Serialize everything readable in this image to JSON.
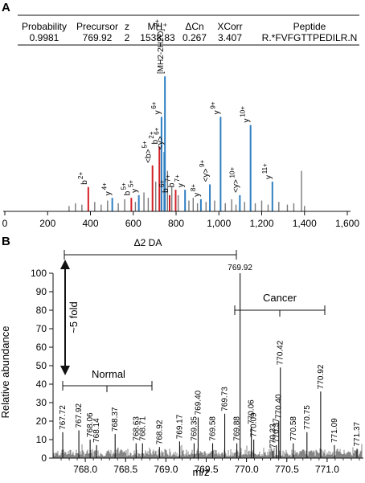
{
  "panel_a": {
    "label": "A",
    "table": {
      "headers": [
        "Probability",
        "Precursor",
        "z",
        "MH⁺",
        "ΔCn",
        "XCorr",
        "Peptide"
      ],
      "row": [
        "0.9981",
        "769.92",
        "2",
        "1538.83",
        "0.267",
        "3.407",
        "R.*FVFGTTPEDILR.N"
      ]
    }
  },
  "panel_b": {
    "label": "B"
  },
  "chart_data": [
    {
      "type": "bar",
      "subtype": "ms2-spectrum",
      "title": "",
      "xlabel": "",
      "ylabel": "",
      "xlim": [
        0,
        1600
      ],
      "x_ticks": [
        "0",
        "200",
        "400",
        "600",
        "800",
        "1,000",
        "1,200",
        "1,400",
        "1,600"
      ],
      "colors": {
        "b_ion": "#d32027",
        "y_ion": "#2f7fc1",
        "other": "#7a7a7a"
      },
      "series": [
        {
          "name": "b ions",
          "peaks": [
            {
              "x": 390,
              "y": 18,
              "label": "b",
              "charge": "2+"
            },
            {
              "x": 591,
              "y": 10,
              "label": "b",
              "charge": "5+"
            },
            {
              "x": 690,
              "y": 34,
              "label": "<b>",
              "charge": "5+"
            },
            {
              "x": 722,
              "y": 48,
              "label": "b",
              "charge": "2+"
            },
            {
              "x": 770,
              "y": 12,
              "label": "b",
              "charge": "6+"
            },
            {
              "x": 798,
              "y": 16,
              "label": "b",
              "charge": "7+"
            }
          ]
        },
        {
          "name": "y ions",
          "peaks": [
            {
              "x": 502,
              "y": 10,
              "label": "y",
              "charge": "4+"
            },
            {
              "x": 626,
              "y": 12,
              "label": "y",
              "charge": "5+"
            },
            {
              "x": 732,
              "y": 70,
              "label": "y",
              "charge": "6+"
            },
            {
              "x": 745,
              "y": 44,
              "label": "<y>",
              "charge": "6+"
            },
            {
              "x": 748,
              "y": 100,
              "label": "[MH2-2H2O]",
              "charge": "2+"
            },
            {
              "x": 842,
              "y": 16,
              "label": "y",
              "charge": "7+"
            },
            {
              "x": 916,
              "y": 9,
              "label": "y",
              "charge": "8+"
            },
            {
              "x": 958,
              "y": 20,
              "label": "<y>",
              "charge": "9+"
            },
            {
              "x": 1008,
              "y": 70,
              "label": "y",
              "charge": "9+"
            },
            {
              "x": 1098,
              "y": 12,
              "label": "<y>",
              "charge": "10+"
            },
            {
              "x": 1148,
              "y": 64,
              "label": "y",
              "charge": "10+"
            },
            {
              "x": 1250,
              "y": 22,
              "label": "y",
              "charge": "11+"
            }
          ]
        },
        {
          "name": "unassigned",
          "peaks": [
            {
              "x": 300,
              "y": 4
            },
            {
              "x": 330,
              "y": 6
            },
            {
              "x": 360,
              "y": 5
            },
            {
              "x": 420,
              "y": 7
            },
            {
              "x": 450,
              "y": 5
            },
            {
              "x": 480,
              "y": 8
            },
            {
              "x": 530,
              "y": 6
            },
            {
              "x": 560,
              "y": 9
            },
            {
              "x": 610,
              "y": 7
            },
            {
              "x": 650,
              "y": 14
            },
            {
              "x": 670,
              "y": 10
            },
            {
              "x": 705,
              "y": 22
            },
            {
              "x": 760,
              "y": 30
            },
            {
              "x": 780,
              "y": 18
            },
            {
              "x": 810,
              "y": 12
            },
            {
              "x": 860,
              "y": 8
            },
            {
              "x": 880,
              "y": 10
            },
            {
              "x": 900,
              "y": 6
            },
            {
              "x": 940,
              "y": 7
            },
            {
              "x": 980,
              "y": 8
            },
            {
              "x": 1030,
              "y": 6
            },
            {
              "x": 1060,
              "y": 9
            },
            {
              "x": 1080,
              "y": 5
            },
            {
              "x": 1120,
              "y": 7
            },
            {
              "x": 1170,
              "y": 6
            },
            {
              "x": 1200,
              "y": 8
            },
            {
              "x": 1230,
              "y": 5
            },
            {
              "x": 1280,
              "y": 7
            },
            {
              "x": 1320,
              "y": 5
            },
            {
              "x": 1350,
              "y": 6
            },
            {
              "x": 1386,
              "y": 30
            },
            {
              "x": 1400,
              "y": 4
            }
          ]
        }
      ]
    },
    {
      "type": "bar",
      "subtype": "ms1-spectrum",
      "title": "",
      "xlabel": "m/z",
      "ylabel": "Relative abundance",
      "xlim": [
        767.6,
        771.45
      ],
      "ylim": [
        0,
        100
      ],
      "x_ticks": [
        "768.0",
        "768.5",
        "769.0",
        "769.5",
        "770.0",
        "770.5",
        "771.0"
      ],
      "y_ticks": [
        "0",
        "10",
        "20",
        "30",
        "40",
        "50",
        "60",
        "70",
        "80",
        "90",
        "100"
      ],
      "labeled_peaks": [
        {
          "x": 767.72,
          "y": 14,
          "label": "767.72"
        },
        {
          "x": 767.92,
          "y": 15,
          "label": "767.92"
        },
        {
          "x": 768.06,
          "y": 10,
          "label": "768.06"
        },
        {
          "x": 768.14,
          "y": 7,
          "label": "768.14"
        },
        {
          "x": 768.37,
          "y": 13,
          "label": "768.37"
        },
        {
          "x": 768.63,
          "y": 8,
          "label": "768.63"
        },
        {
          "x": 768.71,
          "y": 8,
          "label": "768.71"
        },
        {
          "x": 768.92,
          "y": 6,
          "label": "768.92"
        },
        {
          "x": 769.17,
          "y": 9,
          "label": "769.17"
        },
        {
          "x": 769.35,
          "y": 8,
          "label": "769.35"
        },
        {
          "x": 769.4,
          "y": 22,
          "label": "769.40"
        },
        {
          "x": 769.58,
          "y": 8,
          "label": "769.58"
        },
        {
          "x": 769.73,
          "y": 24,
          "label": "769.73"
        },
        {
          "x": 769.88,
          "y": 8,
          "label": "769.88"
        },
        {
          "x": 769.92,
          "y": 100,
          "label": "769.92"
        },
        {
          "x": 770.06,
          "y": 17,
          "label": "770.06"
        },
        {
          "x": 770.09,
          "y": 10,
          "label": "770.09"
        },
        {
          "x": 770.33,
          "y": 4,
          "label": "770.33"
        },
        {
          "x": 770.37,
          "y": 7,
          "label": "770.37"
        },
        {
          "x": 770.4,
          "y": 20,
          "label": "770.40"
        },
        {
          "x": 770.42,
          "y": 49,
          "label": "770.42"
        },
        {
          "x": 770.58,
          "y": 8,
          "label": "770.58"
        },
        {
          "x": 770.75,
          "y": 14,
          "label": "770.75"
        },
        {
          "x": 770.92,
          "y": 36,
          "label": "770.92"
        },
        {
          "x": 771.09,
          "y": 7,
          "label": "771.09"
        },
        {
          "x": 771.37,
          "y": 5,
          "label": "771.37"
        }
      ],
      "annotations": {
        "delta_label": "Δ2 DA",
        "fold_label": "~5 fold",
        "normal_label": "Normal",
        "cancer_label": "Cancer"
      }
    }
  ]
}
